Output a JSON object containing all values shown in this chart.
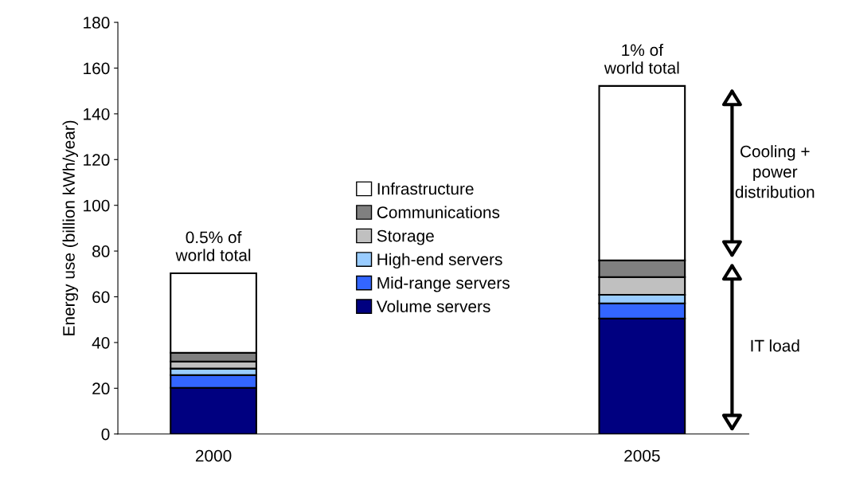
{
  "chart_data": {
    "type": "bar",
    "stacked": true,
    "ylabel": "Energy use (billion kWh/year)",
    "categories": [
      "2000",
      "2005"
    ],
    "series": [
      {
        "name": "Volume servers",
        "color": "#000080",
        "values": [
          20.2,
          50.5
        ]
      },
      {
        "name": "Mid-range servers",
        "color": "#3366ff",
        "values": [
          5.6,
          6.6
        ]
      },
      {
        "name": "High-end servers",
        "color": "#99ccff",
        "values": [
          2.8,
          3.8
        ]
      },
      {
        "name": "Storage",
        "color": "#c0c0c0",
        "values": [
          3.1,
          7.7
        ]
      },
      {
        "name": "Communications",
        "color": "#808080",
        "values": [
          3.8,
          7.3
        ]
      },
      {
        "name": "Infrastructure",
        "color": "#ffffff",
        "values": [
          34.8,
          76.3
        ]
      }
    ],
    "ylim": [
      0,
      180
    ],
    "yticks": [
      0,
      20,
      40,
      60,
      80,
      100,
      120,
      140,
      160,
      180
    ],
    "grid": false,
    "legend": "center",
    "annotations": [
      {
        "text": "0.5% of\nworld total",
        "x": "2000",
        "y": 70.3
      },
      {
        "text": "1% of\nworld total",
        "x": "2005",
        "y": 152.2
      },
      "Cooling +\npower\ndistribution",
      "IT load"
    ]
  }
}
